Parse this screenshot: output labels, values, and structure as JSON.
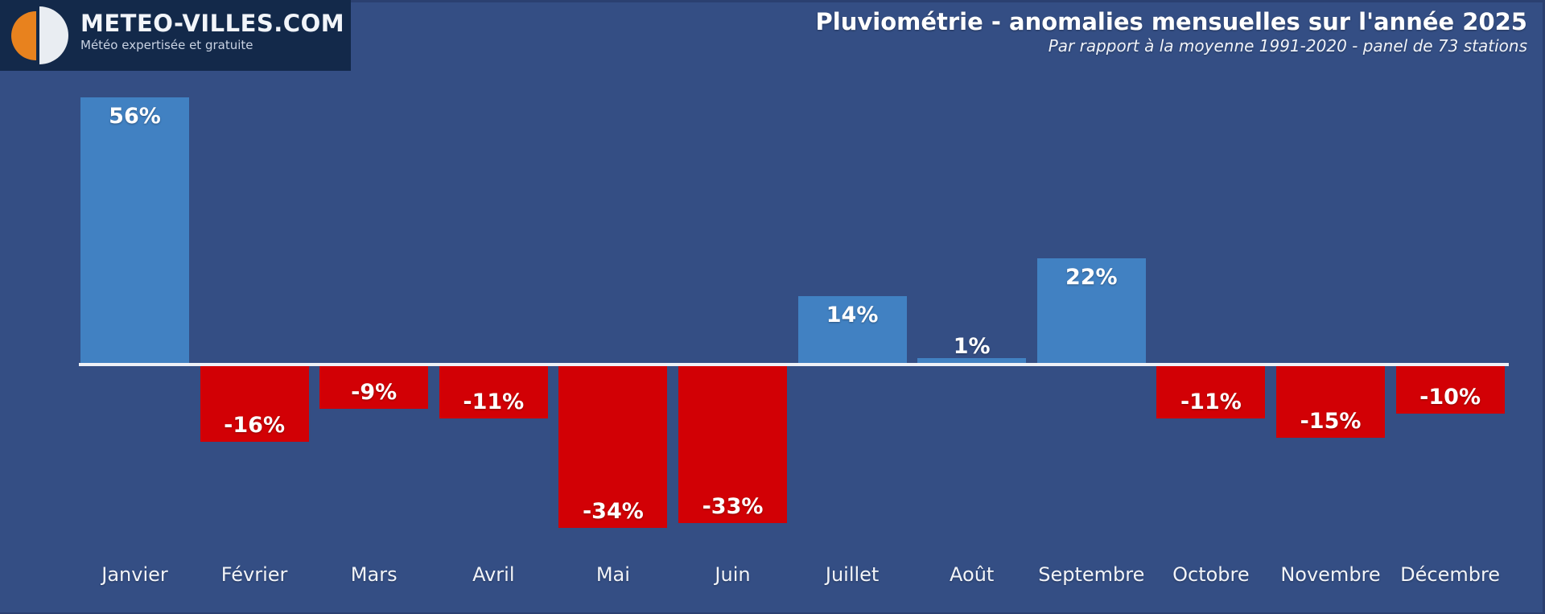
{
  "logo": {
    "title": "METEO-VILLES.COM",
    "tagline": "Météo expertisée et gratuite"
  },
  "header": {
    "title": "Pluviométrie - anomalies mensuelles sur l'année 2025",
    "subtitle": "Par rapport à la moyenne 1991-2020 - panel de 73 stations"
  },
  "chart_data": {
    "type": "bar",
    "title": "Pluviométrie - anomalies mensuelles sur l'année 2025",
    "subtitle": "Par rapport à la moyenne 1991-2020 - panel de 73 stations",
    "categories": [
      "Janvier",
      "Février",
      "Mars",
      "Avril",
      "Mai",
      "Juin",
      "Juillet",
      "Août",
      "Septembre",
      "Octobre",
      "Novembre",
      "Décembre"
    ],
    "values": [
      56,
      -16,
      -9,
      -11,
      -34,
      -33,
      14,
      1,
      22,
      -11,
      -15,
      -10
    ],
    "unit": "%",
    "xlabel": "",
    "ylabel": "",
    "ylim": [
      -40,
      60
    ],
    "grid": false,
    "legend": "none",
    "colors": {
      "positive": "#4181C2",
      "negative": "#D20005",
      "baseline": "#EEF1F7",
      "background": "#344E84",
      "logo_background": "#13294A",
      "logo_orange": "#E8821E",
      "label_text": "#FFFFFF"
    }
  }
}
